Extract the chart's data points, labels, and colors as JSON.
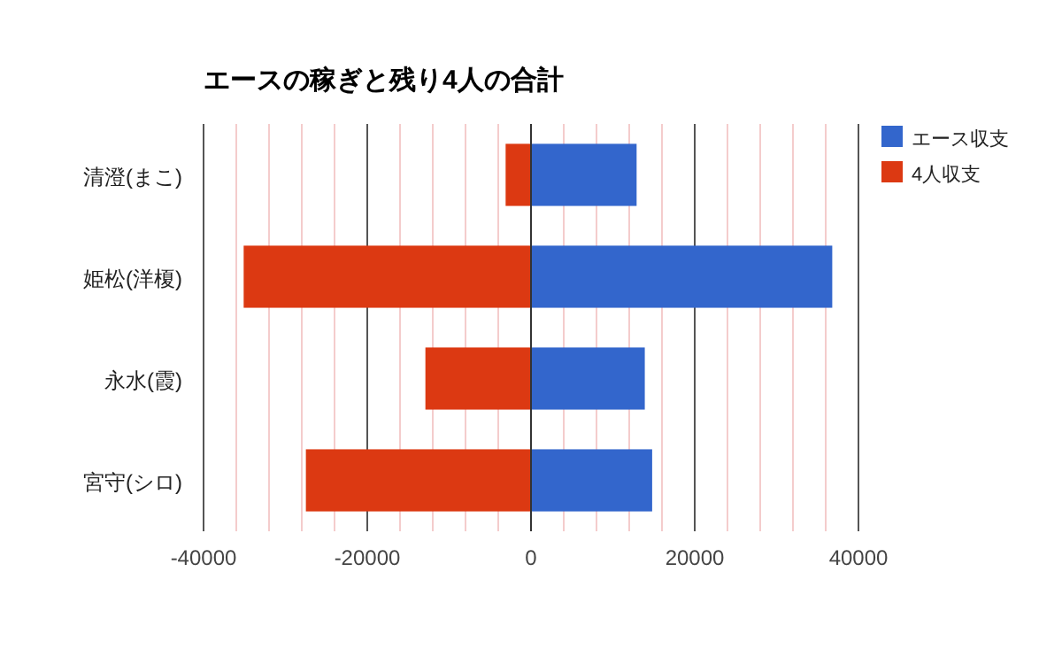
{
  "chart_data": {
    "type": "bar",
    "orientation": "horizontal",
    "stacked": true,
    "title": "エースの稼ぎと残り4人の合計",
    "categories": [
      "清澄(まこ)",
      "姫松(洋榎)",
      "永水(霞)",
      "宮守(シロ)"
    ],
    "series": [
      {
        "name": "エース収支",
        "color": "#3366cc",
        "values": [
          12900,
          36800,
          13900,
          14800
        ]
      },
      {
        "name": "4人収支",
        "color": "#dc3912",
        "values": [
          -3100,
          -35100,
          -12900,
          -27500
        ]
      }
    ],
    "xlim": [
      -40000,
      40000
    ],
    "xticks": [
      -40000,
      {
        "value": -36000,
        "label": null
      },
      {
        "value": -32000,
        "label": null
      },
      {
        "value": -28000,
        "label": null
      },
      {
        "value": -24000,
        "label": null
      },
      -20000,
      {
        "value": -16000,
        "label": null
      },
      {
        "value": -12000,
        "label": null
      },
      {
        "value": -8000,
        "label": null
      },
      {
        "value": -4000,
        "label": null
      },
      0,
      {
        "value": 4000,
        "label": null
      },
      {
        "value": 8000,
        "label": null
      },
      {
        "value": 12000,
        "label": null
      },
      {
        "value": 16000,
        "label": null
      },
      20000,
      {
        "value": 24000,
        "label": null
      },
      {
        "value": 28000,
        "label": null
      },
      {
        "value": 32000,
        "label": null
      },
      {
        "value": 36000,
        "label": null
      },
      40000
    ],
    "grid": "x",
    "legend": "right"
  }
}
